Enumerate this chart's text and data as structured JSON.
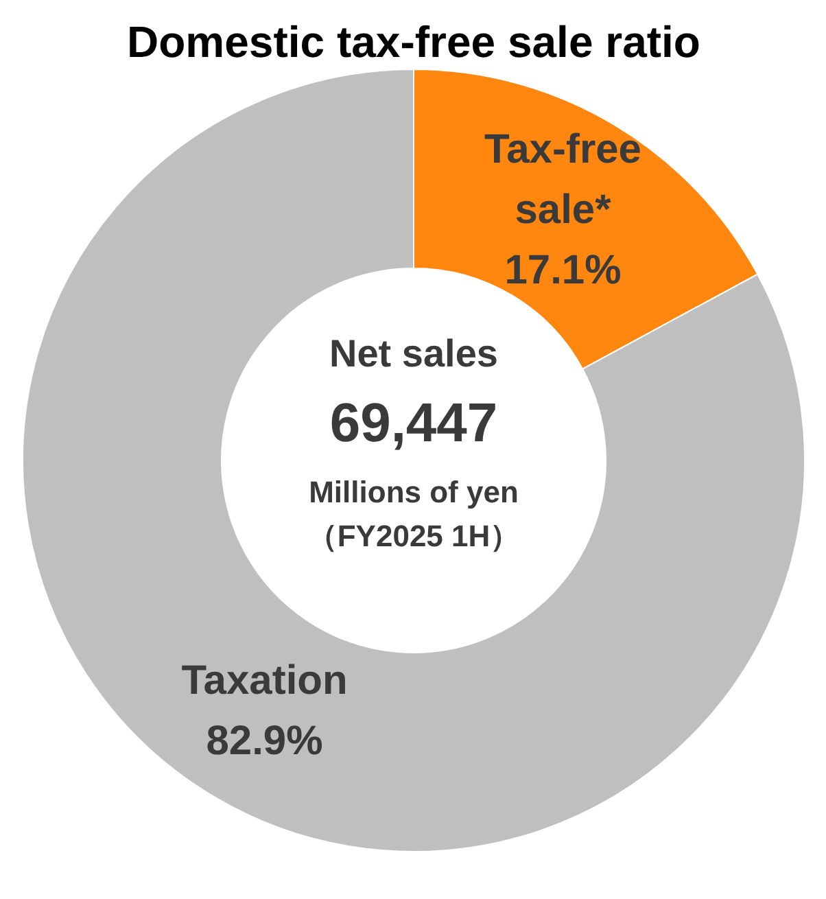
{
  "chart_data": {
    "type": "donut",
    "title": "Domestic tax-free sale ratio",
    "categories": [
      "Tax-free sale*",
      "Taxation"
    ],
    "values": [
      17.1,
      82.9
    ],
    "colors": [
      "#ff870f",
      "#bfbfbf"
    ],
    "value_labels": [
      "17.1%",
      "82.9%"
    ],
    "annotations": [
      "Net sales",
      "69,447",
      "Millions of yen",
      "（FY2025 1H）"
    ]
  }
}
